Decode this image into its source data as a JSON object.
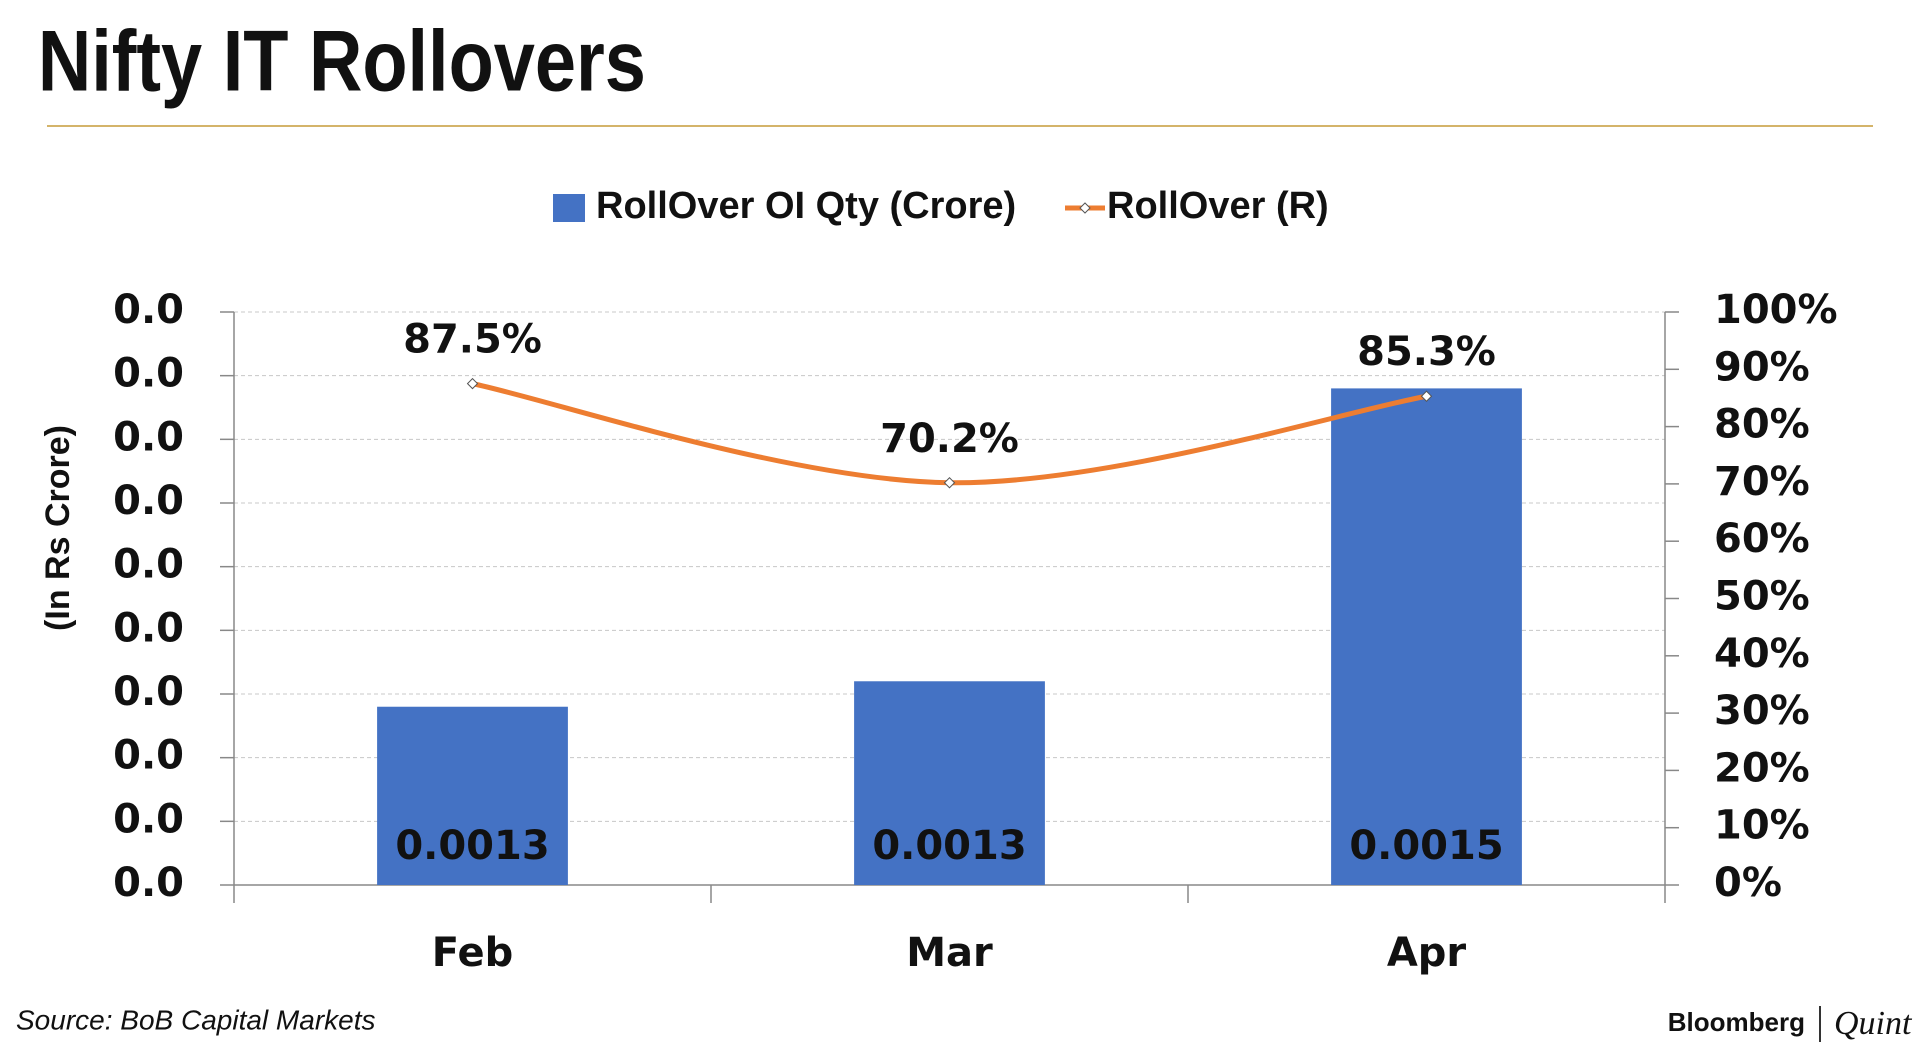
{
  "chart_data": {
    "type": "bar_line",
    "title": "Nifty IT Rollovers",
    "y_label": "(In Rs Crore)",
    "source": "Source: BoB Capital Markets",
    "brand": [
      "Bloomberg",
      "Quint"
    ],
    "categories": [
      "Feb",
      "Mar",
      "Apr"
    ],
    "series": [
      {
        "name": "RollOver OI Qty (Crore)",
        "type": "bar",
        "color": "#4472c4",
        "axis": "y",
        "values": [
          0.00127,
          0.00129,
          0.00152
        ],
        "value_labels": [
          "0.0013",
          "0.0013",
          "0.0015"
        ]
      },
      {
        "name": "RollOver (R)",
        "type": "line",
        "color": "#ed7d31",
        "axis": "y2",
        "values": [
          87.5,
          70.2,
          85.3
        ],
        "value_labels": [
          "87.5%",
          "70.2%",
          "85.3%"
        ]
      }
    ],
    "ylim": [
      0.00113,
      0.00158
    ],
    "yticks": [
      {
        "value": 0.00113,
        "label": "0.0"
      },
      {
        "value": 0.00118,
        "label": "0.0"
      },
      {
        "value": 0.00123,
        "label": "0.0"
      },
      {
        "value": 0.00128,
        "label": "0.0"
      },
      {
        "value": 0.00133,
        "label": "0.0"
      },
      {
        "value": 0.00138,
        "label": "0.0"
      },
      {
        "value": 0.00143,
        "label": "0.0"
      },
      {
        "value": 0.00148,
        "label": "0.0"
      },
      {
        "value": 0.00153,
        "label": "0.0"
      },
      {
        "value": 0.00158,
        "label": "0.0"
      }
    ],
    "y2lim": [
      0,
      100
    ],
    "y2ticks": [
      {
        "value": 0,
        "label": "0%"
      },
      {
        "value": 10,
        "label": "10%"
      },
      {
        "value": 20,
        "label": "20%"
      },
      {
        "value": 30,
        "label": "30%"
      },
      {
        "value": 40,
        "label": "40%"
      },
      {
        "value": 50,
        "label": "50%"
      },
      {
        "value": 60,
        "label": "60%"
      },
      {
        "value": 70,
        "label": "70%"
      },
      {
        "value": 80,
        "label": "80%"
      },
      {
        "value": 90,
        "label": "90%"
      },
      {
        "value": 100,
        "label": "100%"
      }
    ],
    "grid": true,
    "legend": "top"
  }
}
